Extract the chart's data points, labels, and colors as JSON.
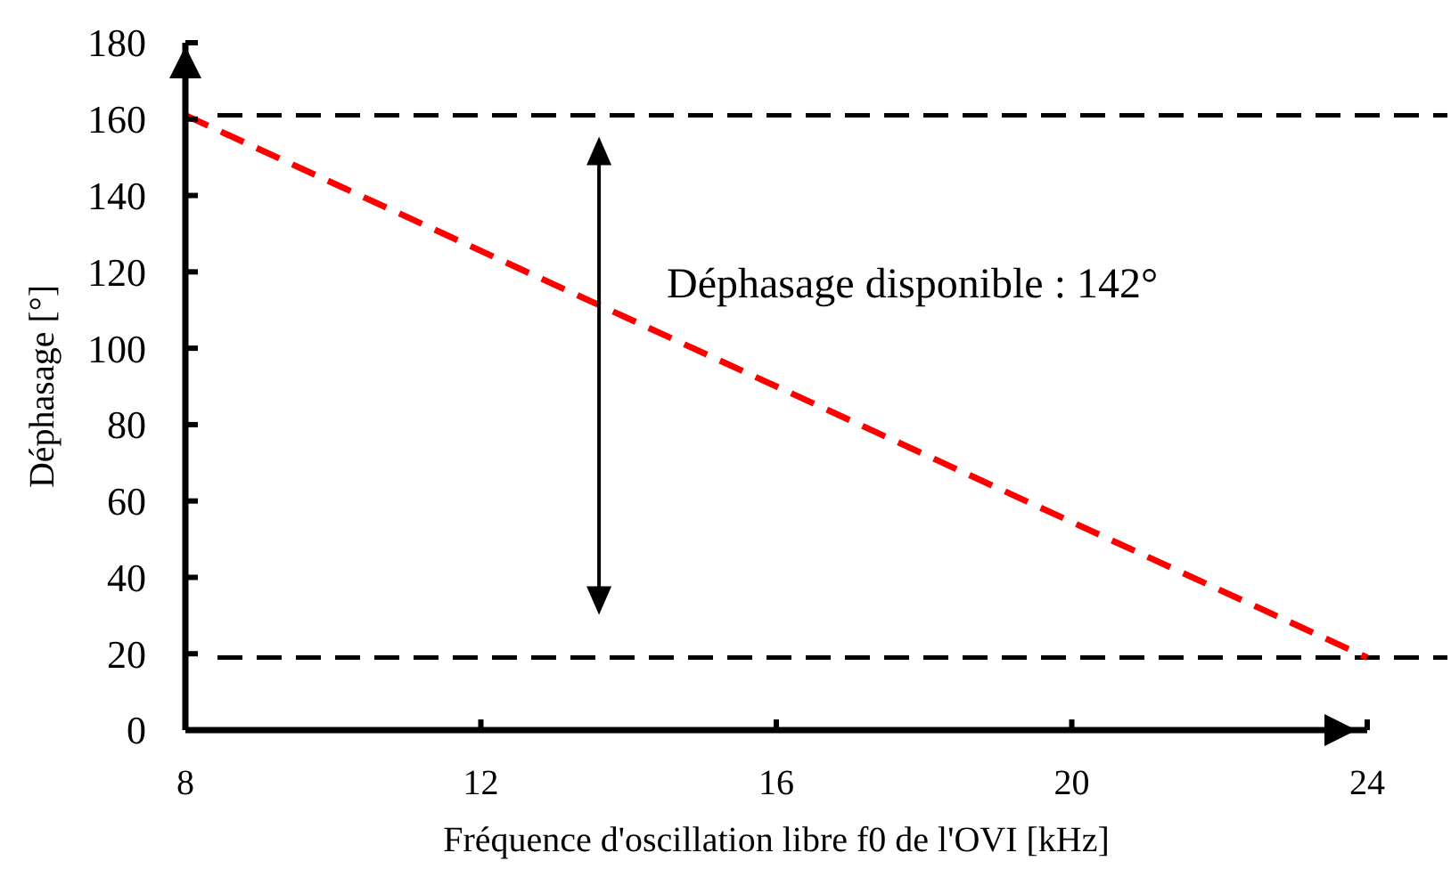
{
  "chart_data": {
    "type": "line",
    "xlabel": "Fréquence d'oscillation libre f0 de l'OVI [kHz]",
    "ylabel": "Déphasage [°]",
    "xlim": [
      8,
      24
    ],
    "xticks": [
      8,
      12,
      16,
      20,
      24
    ],
    "ylim": [
      0,
      180
    ],
    "yticks": [
      0,
      20,
      40,
      60,
      80,
      100,
      120,
      140,
      160,
      180
    ],
    "series": [
      {
        "x": [
          8,
          24
        ],
        "values": [
          161,
          19
        ],
        "color": "#ff0000",
        "line_style": "dashed"
      }
    ],
    "ref_lines": [
      {
        "axis": "y",
        "value": 161,
        "color": "#000000",
        "line_style": "dashed"
      },
      {
        "axis": "y",
        "value": 19,
        "color": "#000000",
        "line_style": "dashed"
      }
    ],
    "annotations": [
      "Déphasage disponible : 142°"
    ],
    "grid": false,
    "marker": "none"
  }
}
